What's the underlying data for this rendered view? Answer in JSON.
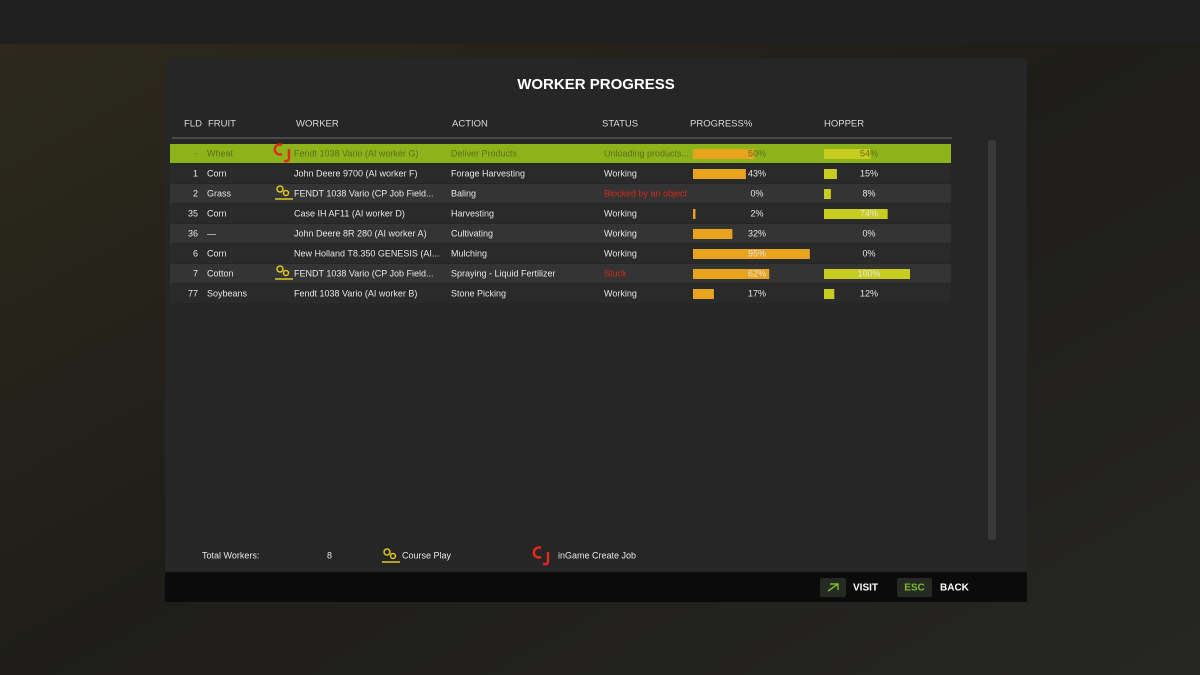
{
  "header": {
    "title": "WORKER PROGRESS"
  },
  "table": {
    "columns": [
      "FLD",
      "FRUIT",
      "WORKER",
      "ACTION",
      "STATUS",
      "PROGRESS%",
      "HOPPER"
    ],
    "selected": 0,
    "progress_color": "#e8a41c",
    "hopper_color": "#c8cc1e",
    "rows": [
      {
        "fld": "-",
        "fruit": "Wheat",
        "icon": "cj",
        "worker": "Fendt 1038 Vario (AI worker G)",
        "action": "Deliver Products",
        "status": "Unloading products...",
        "status_color": "#5e6e1a",
        "progress": {
          "value": 50,
          "label": "50%"
        },
        "hopper": {
          "value": 54,
          "label": "54%"
        }
      },
      {
        "fld": "1",
        "fruit": "Corn",
        "icon": null,
        "worker": "John Deere 9700 (AI worker F)",
        "action": "Forage Harvesting",
        "status": "Working",
        "status_color": "#e6e6e6",
        "progress": {
          "value": 43,
          "label": "43%"
        },
        "hopper": {
          "value": 15,
          "label": "15%"
        }
      },
      {
        "fld": "2",
        "fruit": "Grass",
        "icon": "cp",
        "worker": "FENDT 1038 Vario  (CP Job Field...",
        "action": "Baling",
        "status": "Blocked by an object",
        "status_color": "#d42a1e",
        "progress": {
          "value": 0,
          "label": "0%"
        },
        "hopper": {
          "value": 8,
          "label": "8%"
        }
      },
      {
        "fld": "35",
        "fruit": "Corn",
        "icon": null,
        "worker": "Case IH AF11 (AI worker D)",
        "action": "Harvesting",
        "status": "Working",
        "status_color": "#e6e6e6",
        "progress": {
          "value": 2,
          "label": "2%"
        },
        "hopper": {
          "value": 74,
          "label": "74%"
        }
      },
      {
        "fld": "36",
        "fruit": "—",
        "icon": null,
        "worker": "John Deere 8R 280 (AI worker A)",
        "action": "Cultivating",
        "status": "Working",
        "status_color": "#e6e6e6",
        "progress": {
          "value": 32,
          "label": "32%"
        },
        "hopper": {
          "value": 0,
          "label": "0%"
        }
      },
      {
        "fld": "6",
        "fruit": "Corn",
        "icon": null,
        "worker": "New Holland T8.350 GENESIS (AI...",
        "action": "Mulching",
        "status": "Working",
        "status_color": "#e6e6e6",
        "progress": {
          "value": 95,
          "label": "95%"
        },
        "hopper": {
          "value": 0,
          "label": "0%"
        }
      },
      {
        "fld": "7",
        "fruit": "Cotton",
        "icon": "cp",
        "worker": "FENDT 1038 Vario  (CP Job Field...",
        "action": "Spraying - Liquid Fertilizer",
        "status": "Stuck",
        "status_color": "#d42a1e",
        "progress": {
          "value": 62,
          "label": "62%"
        },
        "hopper": {
          "value": 100,
          "label": "100%"
        }
      },
      {
        "fld": "77",
        "fruit": "Soybeans",
        "icon": null,
        "worker": "Fendt 1038 Vario (AI worker B)",
        "action": "Stone Picking",
        "status": "Working",
        "status_color": "#e6e6e6",
        "progress": {
          "value": 17,
          "label": "17%"
        },
        "hopper": {
          "value": 12,
          "label": "12%"
        }
      }
    ]
  },
  "footer": {
    "total_label": "Total Workers:",
    "total": "8",
    "legend_cp": "Course Play",
    "legend_cj": "inGame Create Job"
  },
  "buttons": {
    "visit": "VISIT",
    "esc": "ESC",
    "back": "BACK"
  }
}
